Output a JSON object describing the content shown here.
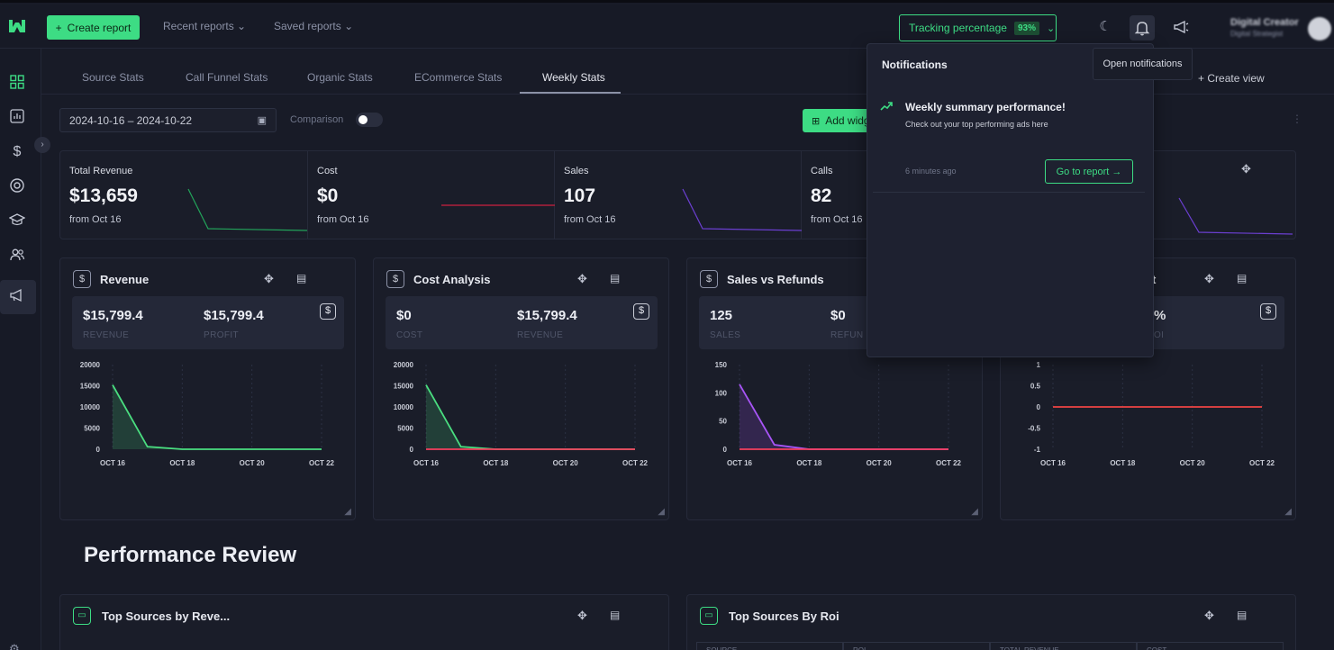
{
  "header": {
    "create_report": "Create report",
    "recent_reports": "Recent reports",
    "saved_reports": "Saved reports",
    "tracking_label": "Tracking percentage",
    "tracking_value": "93%",
    "user_name": "Digital Creator",
    "user_role": "Digital Strategist"
  },
  "tabs": [
    "Source Stats",
    "Call Funnel Stats",
    "Organic Stats",
    "ECommerce Stats",
    "Weekly Stats"
  ],
  "active_tab": "Weekly Stats",
  "create_view": "Create view",
  "toolbar": {
    "date_range": "2024-10-16 – 2024-10-22",
    "comparison_label": "Comparison",
    "add_widget": "Add widg"
  },
  "kpis": [
    {
      "label": "Total Revenue",
      "value": "$13,659",
      "from": "from Oct 16"
    },
    {
      "label": "Cost",
      "value": "$0",
      "from": "from Oct 16"
    },
    {
      "label": "Sales",
      "value": "107",
      "from": "from Oct 16"
    },
    {
      "label": "Calls",
      "value": "82",
      "from": "from Oct 16"
    }
  ],
  "widgets": [
    {
      "title": "Revenue",
      "stats": [
        {
          "value": "$15,799.4",
          "label": "REVENUE"
        },
        {
          "value": "$15,799.4",
          "label": "PROFIT"
        }
      ],
      "y_ticks": [
        "20000",
        "15000",
        "10000",
        "5000",
        "0"
      ],
      "x_ticks": [
        "OCT 16",
        "OCT 18",
        "OCT 20",
        "OCT 22"
      ]
    },
    {
      "title": "Cost Analysis",
      "stats": [
        {
          "value": "$0",
          "label": "COST"
        },
        {
          "value": "$15,799.4",
          "label": "REVENUE"
        }
      ],
      "y_ticks": [
        "20000",
        "15000",
        "10000",
        "5000",
        "0"
      ],
      "x_ticks": [
        "OCT 16",
        "OCT 18",
        "OCT 20",
        "OCT 22"
      ]
    },
    {
      "title": "Sales vs Refunds",
      "stats": [
        {
          "value": "125",
          "label": "SALES"
        },
        {
          "value": "$0",
          "label": "REFUN"
        }
      ],
      "y_ticks": [
        "150",
        "100",
        "50",
        "0"
      ],
      "x_ticks": [
        "OCT 16",
        "OCT 18",
        "OCT 20",
        "OCT 22"
      ]
    },
    {
      "title": "t",
      "stats": [
        {
          "value": "%",
          "label": "OI"
        }
      ],
      "y_ticks": [
        "1",
        "0.5",
        "0",
        "-0.5",
        "-1"
      ],
      "x_ticks": [
        "OCT 16",
        "OCT 18",
        "OCT 20",
        "OCT 22"
      ]
    }
  ],
  "chart_data": [
    {
      "type": "area",
      "title": "Revenue",
      "x": [
        "OCT 16",
        "OCT 17",
        "OCT 18",
        "OCT 19",
        "OCT 20",
        "OCT 21",
        "OCT 22"
      ],
      "ylim": [
        0,
        20000
      ],
      "series": [
        {
          "values": [
            15200,
            600,
            0,
            0,
            0,
            0,
            0
          ],
          "color": "#4ade80"
        }
      ]
    },
    {
      "type": "area",
      "title": "Cost Analysis",
      "x": [
        "OCT 16",
        "OCT 17",
        "OCT 18",
        "OCT 19",
        "OCT 20",
        "OCT 21",
        "OCT 22"
      ],
      "ylim": [
        0,
        20000
      ],
      "series": [
        {
          "values": [
            15200,
            600,
            0,
            0,
            0,
            0,
            0
          ],
          "color": "#4ade80"
        },
        {
          "values": [
            0,
            0,
            0,
            0,
            0,
            0,
            0
          ],
          "color": "#f43f5e"
        }
      ]
    },
    {
      "type": "area",
      "title": "Sales vs Refunds",
      "x": [
        "OCT 16",
        "OCT 17",
        "OCT 18",
        "OCT 19",
        "OCT 20",
        "OCT 21",
        "OCT 22"
      ],
      "ylim": [
        0,
        150
      ],
      "series": [
        {
          "values": [
            115,
            8,
            0,
            0,
            0,
            0,
            0
          ],
          "color": "#a855f7"
        },
        {
          "values": [
            0,
            0,
            0,
            0,
            0,
            0,
            0
          ],
          "color": "#f43f5e"
        }
      ]
    },
    {
      "type": "line",
      "x": [
        "OCT 16",
        "OCT 17",
        "OCT 18",
        "OCT 19",
        "OCT 20",
        "OCT 21",
        "OCT 22"
      ],
      "ylim": [
        -1,
        1
      ],
      "series": [
        {
          "values": [
            0,
            0,
            0,
            0,
            0,
            0,
            0
          ],
          "color": "#ef4444"
        }
      ]
    }
  ],
  "performance": {
    "title": "Performance Review",
    "left_title": "Top Sources by Reve...",
    "right_title": "Top Sources By Roi",
    "right_columns": [
      "SOURCE",
      "ROI",
      "TOTAL REVENUE",
      "COST"
    ]
  },
  "notifications": {
    "title": "Notifications",
    "item_heading": "Weekly summary performance!",
    "item_text": "Check out your top performing ads here",
    "item_time": "6 minutes ago",
    "go_button": "Go to report →",
    "tooltip": "Open notifications"
  },
  "colors": {
    "accent": "#3ddc84",
    "background": "#181b27",
    "panel": "#1a1d29"
  }
}
